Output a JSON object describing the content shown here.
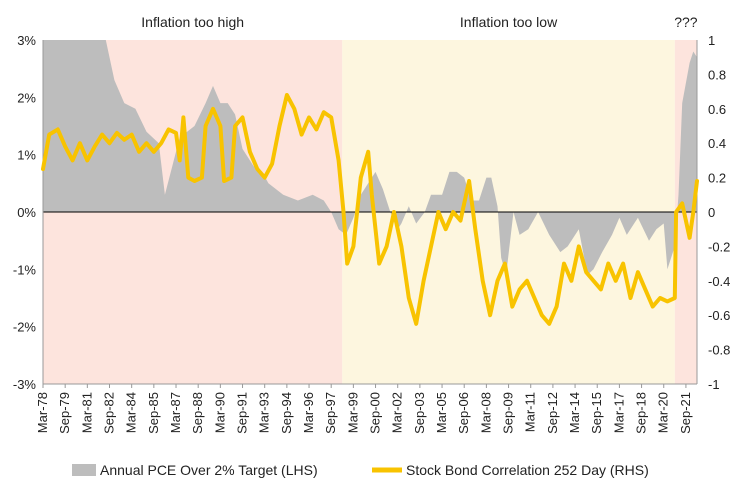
{
  "chart_data": {
    "type": "area",
    "title": "",
    "regions": [
      {
        "label": "Inflation too high",
        "from": "Mar-78",
        "to": "Jun-98",
        "color": "#fde4dd"
      },
      {
        "label": "Inflation too low",
        "from": "Jun-98",
        "to": "Dec-20",
        "color": "#fdf6df"
      },
      {
        "label": "???",
        "from": "Dec-20",
        "to": "Jun-22",
        "color": "#fde4dd"
      }
    ],
    "y_left": {
      "ylim": [
        -3,
        3
      ],
      "ticks": [
        3,
        2,
        1,
        0,
        -1,
        -2,
        -3
      ],
      "tick_labels": [
        "3%",
        "2%",
        "1%",
        "0%",
        "-1%",
        "-2%",
        "-3%"
      ]
    },
    "y_right": {
      "ylim": [
        -1,
        1
      ],
      "ticks": [
        1,
        0.8,
        0.6,
        0.4,
        0.2,
        0,
        -0.2,
        -0.4,
        -0.6,
        -0.8,
        -1
      ],
      "tick_labels": [
        "1",
        "0.8",
        "0.6",
        "0.4",
        "0.2",
        "0",
        "-0.2",
        "-0.4",
        "-0.6",
        "-0.8",
        "-1"
      ]
    },
    "x_range": [
      "Mar-78",
      "Jun-22"
    ],
    "x_tick_labels": [
      "Mar-78",
      "Sep-79",
      "Mar-81",
      "Sep-82",
      "Mar-84",
      "Sep-85",
      "Mar-87",
      "Sep-88",
      "Mar-90",
      "Sep-91",
      "Mar-93",
      "Sep-94",
      "Mar-96",
      "Sep-97",
      "Mar-99",
      "Sep-00",
      "Mar-02",
      "Sep-03",
      "Mar-05",
      "Sep-06",
      "Mar-08",
      "Sep-09",
      "Mar-11",
      "Sep-12",
      "Mar-14",
      "Sep-15",
      "Mar-17",
      "Sep-18",
      "Mar-20",
      "Sep-21"
    ],
    "series": [
      {
        "name": "Annual PCE Over 2% Target (LHS)",
        "kind": "area",
        "axis": "left",
        "color": "#bdbdbd",
        "points": [
          [
            "1978-03",
            3.0
          ],
          [
            "1982-06",
            3.0
          ],
          [
            "1983-01",
            2.3
          ],
          [
            "1983-09",
            1.9
          ],
          [
            "1984-06",
            1.8
          ],
          [
            "1985-03",
            1.4
          ],
          [
            "1986-01",
            1.2
          ],
          [
            "1986-06",
            0.3
          ],
          [
            "1986-12",
            0.8
          ],
          [
            "1987-06",
            1.3
          ],
          [
            "1988-06",
            1.5
          ],
          [
            "1989-03",
            1.9
          ],
          [
            "1989-09",
            2.2
          ],
          [
            "1990-03",
            1.9
          ],
          [
            "1990-09",
            1.9
          ],
          [
            "1991-03",
            1.7
          ],
          [
            "1991-09",
            1.1
          ],
          [
            "1992-06",
            0.8
          ],
          [
            "1993-01",
            0.7
          ],
          [
            "1993-06",
            0.5
          ],
          [
            "1994-06",
            0.3
          ],
          [
            "1995-06",
            0.2
          ],
          [
            "1996-06",
            0.3
          ],
          [
            "1997-03",
            0.2
          ],
          [
            "1997-09",
            0.0
          ],
          [
            "1998-03",
            -0.3
          ],
          [
            "1998-09",
            -0.4
          ],
          [
            "1999-03",
            -0.1
          ],
          [
            "1999-09",
            0.3
          ],
          [
            "2000-03",
            0.5
          ],
          [
            "2000-09",
            0.7
          ],
          [
            "2001-03",
            0.4
          ],
          [
            "2001-09",
            0.0
          ],
          [
            "2002-03",
            -0.3
          ],
          [
            "2002-06",
            -0.2
          ],
          [
            "2002-12",
            0.1
          ],
          [
            "2003-06",
            -0.2
          ],
          [
            "2004-01",
            0.0
          ],
          [
            "2004-06",
            0.3
          ],
          [
            "2005-03",
            0.3
          ],
          [
            "2005-09",
            0.7
          ],
          [
            "2006-03",
            0.7
          ],
          [
            "2006-09",
            0.6
          ],
          [
            "2007-03",
            0.2
          ],
          [
            "2007-09",
            0.2
          ],
          [
            "2008-03",
            0.6
          ],
          [
            "2008-07",
            0.6
          ],
          [
            "2008-12",
            0.1
          ],
          [
            "2009-03",
            -0.8
          ],
          [
            "2009-07",
            -1.1
          ],
          [
            "2010-01",
            0.0
          ],
          [
            "2010-06",
            -0.4
          ],
          [
            "2011-01",
            -0.3
          ],
          [
            "2011-09",
            0.0
          ],
          [
            "2012-06",
            -0.4
          ],
          [
            "2013-03",
            -0.7
          ],
          [
            "2013-09",
            -0.6
          ],
          [
            "2014-06",
            -0.3
          ],
          [
            "2015-01",
            -1.1
          ],
          [
            "2015-06",
            -1.0
          ],
          [
            "2016-01",
            -0.7
          ],
          [
            "2016-09",
            -0.4
          ],
          [
            "2017-03",
            -0.1
          ],
          [
            "2017-09",
            -0.4
          ],
          [
            "2018-06",
            -0.1
          ],
          [
            "2019-03",
            -0.5
          ],
          [
            "2019-09",
            -0.3
          ],
          [
            "2020-03",
            -0.2
          ],
          [
            "2020-06",
            -1.0
          ],
          [
            "2020-12",
            -0.6
          ],
          [
            "2021-03",
            0.3
          ],
          [
            "2021-06",
            1.9
          ],
          [
            "2021-12",
            2.6
          ],
          [
            "2022-03",
            2.8
          ],
          [
            "2022-06",
            2.7
          ]
        ]
      },
      {
        "name": "Stock Bond Correlation 252 Day (RHS)",
        "kind": "line",
        "axis": "right",
        "color": "#f8c300",
        "points": [
          [
            "1978-03",
            0.25
          ],
          [
            "1978-08",
            0.45
          ],
          [
            "1979-03",
            0.48
          ],
          [
            "1979-09",
            0.38
          ],
          [
            "1980-03",
            0.3
          ],
          [
            "1980-09",
            0.4
          ],
          [
            "1981-03",
            0.3
          ],
          [
            "1981-09",
            0.38
          ],
          [
            "1982-03",
            0.45
          ],
          [
            "1982-09",
            0.4
          ],
          [
            "1983-03",
            0.46
          ],
          [
            "1983-09",
            0.42
          ],
          [
            "1984-03",
            0.45
          ],
          [
            "1984-09",
            0.35
          ],
          [
            "1985-03",
            0.4
          ],
          [
            "1985-09",
            0.35
          ],
          [
            "1986-03",
            0.4
          ],
          [
            "1986-09",
            0.48
          ],
          [
            "1987-03",
            0.46
          ],
          [
            "1987-06",
            0.3
          ],
          [
            "1987-09",
            0.55
          ],
          [
            "1988-01",
            0.2
          ],
          [
            "1988-06",
            0.18
          ],
          [
            "1988-12",
            0.2
          ],
          [
            "1989-03",
            0.5
          ],
          [
            "1989-09",
            0.6
          ],
          [
            "1990-03",
            0.5
          ],
          [
            "1990-06",
            0.18
          ],
          [
            "1990-12",
            0.2
          ],
          [
            "1991-03",
            0.5
          ],
          [
            "1991-09",
            0.55
          ],
          [
            "1992-03",
            0.35
          ],
          [
            "1992-09",
            0.25
          ],
          [
            "1993-03",
            0.2
          ],
          [
            "1993-09",
            0.28
          ],
          [
            "1994-03",
            0.5
          ],
          [
            "1994-09",
            0.68
          ],
          [
            "1995-03",
            0.6
          ],
          [
            "1995-09",
            0.45
          ],
          [
            "1996-03",
            0.55
          ],
          [
            "1996-09",
            0.48
          ],
          [
            "1997-03",
            0.58
          ],
          [
            "1997-09",
            0.55
          ],
          [
            "1998-03",
            0.3
          ],
          [
            "1998-07",
            0.0
          ],
          [
            "1998-10",
            -0.3
          ],
          [
            "1999-03",
            -0.2
          ],
          [
            "1999-09",
            0.2
          ],
          [
            "2000-03",
            0.35
          ],
          [
            "2000-06",
            0.1
          ],
          [
            "2000-12",
            -0.3
          ],
          [
            "2001-06",
            -0.2
          ],
          [
            "2001-12",
            0.0
          ],
          [
            "2002-06",
            -0.2
          ],
          [
            "2002-12",
            -0.5
          ],
          [
            "2003-06",
            -0.65
          ],
          [
            "2003-12",
            -0.4
          ],
          [
            "2004-06",
            -0.2
          ],
          [
            "2004-12",
            0.0
          ],
          [
            "2005-06",
            -0.1
          ],
          [
            "2005-12",
            0.0
          ],
          [
            "2006-06",
            -0.05
          ],
          [
            "2006-09",
            0.05
          ],
          [
            "2007-01",
            0.18
          ],
          [
            "2007-06",
            -0.1
          ],
          [
            "2007-12",
            -0.4
          ],
          [
            "2008-06",
            -0.6
          ],
          [
            "2008-12",
            -0.4
          ],
          [
            "2009-06",
            -0.3
          ],
          [
            "2009-12",
            -0.55
          ],
          [
            "2010-06",
            -0.45
          ],
          [
            "2010-12",
            -0.4
          ],
          [
            "2011-06",
            -0.5
          ],
          [
            "2011-12",
            -0.6
          ],
          [
            "2012-06",
            -0.65
          ],
          [
            "2012-12",
            -0.55
          ],
          [
            "2013-06",
            -0.3
          ],
          [
            "2013-12",
            -0.4
          ],
          [
            "2014-06",
            -0.2
          ],
          [
            "2014-12",
            -0.35
          ],
          [
            "2015-06",
            -0.4
          ],
          [
            "2015-12",
            -0.45
          ],
          [
            "2016-06",
            -0.3
          ],
          [
            "2016-12",
            -0.4
          ],
          [
            "2017-06",
            -0.3
          ],
          [
            "2017-12",
            -0.5
          ],
          [
            "2018-06",
            -0.35
          ],
          [
            "2018-12",
            -0.45
          ],
          [
            "2019-06",
            -0.55
          ],
          [
            "2019-12",
            -0.5
          ],
          [
            "2020-06",
            -0.52
          ],
          [
            "2020-12",
            -0.5
          ],
          [
            "2021-01",
            0.0
          ],
          [
            "2021-06",
            0.05
          ],
          [
            "2021-12",
            -0.15
          ],
          [
            "2022-03",
            0.0
          ],
          [
            "2022-06",
            0.18
          ]
        ]
      }
    ],
    "legend": {
      "position": "bottom"
    },
    "grid": false
  }
}
